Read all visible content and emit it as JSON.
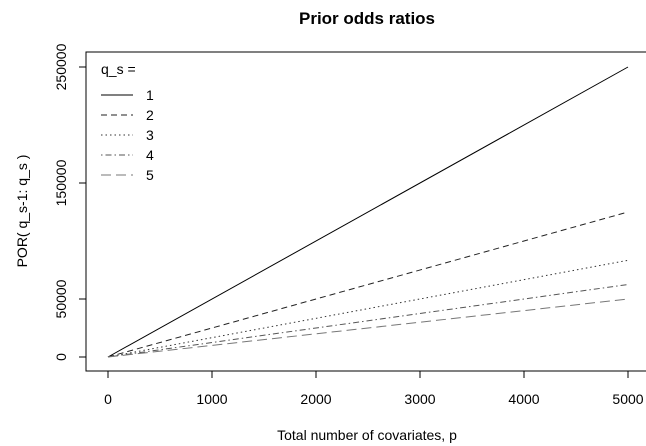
{
  "chart_data": {
    "type": "line",
    "title": "Prior odds ratios",
    "xlabel": "Total number of covariates, p",
    "ylabel": "POR( q_s-1: q_s )",
    "xlim": [
      0,
      5000
    ],
    "ylim": [
      0,
      250000
    ],
    "x_ticks": [
      0,
      1000,
      2000,
      3000,
      4000,
      5000
    ],
    "y_ticks": [
      0,
      50000,
      150000,
      250000
    ],
    "legend": {
      "title": "q_s =",
      "position": "top-left"
    },
    "grid": false,
    "series": [
      {
        "name": "1",
        "line_style": "solid",
        "color": "#000000",
        "x": [
          0,
          5000
        ],
        "y": [
          0,
          250000
        ]
      },
      {
        "name": "2",
        "line_style": "dashed",
        "color": "#222222",
        "x": [
          0,
          5000
        ],
        "y": [
          0,
          125000
        ]
      },
      {
        "name": "3",
        "line_style": "dotted",
        "color": "#333333",
        "x": [
          0,
          5000
        ],
        "y": [
          0,
          83333
        ]
      },
      {
        "name": "4",
        "line_style": "dotdash",
        "color": "#555555",
        "x": [
          0,
          5000
        ],
        "y": [
          0,
          62500
        ]
      },
      {
        "name": "5",
        "line_style": "longdash",
        "color": "#777777",
        "x": [
          0,
          5000
        ],
        "y": [
          0,
          50000
        ]
      }
    ]
  }
}
